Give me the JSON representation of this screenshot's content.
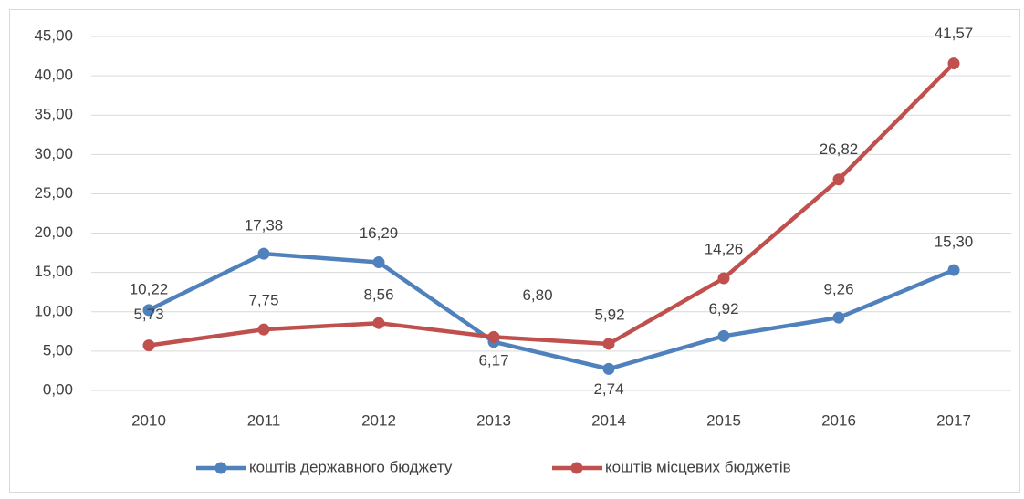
{
  "chart_data": {
    "type": "line",
    "categories": [
      "2010",
      "2011",
      "2012",
      "2013",
      "2014",
      "2015",
      "2016",
      "2017"
    ],
    "series": [
      {
        "name": "коштів державного бюджету",
        "color": "#4f81bd",
        "values": [
          10.22,
          17.38,
          16.29,
          6.17,
          2.74,
          6.92,
          9.26,
          15.3
        ],
        "value_labels": [
          "10,22",
          "17,38",
          "16,29",
          "6,17",
          "2,74",
          "6,92",
          "9,26",
          "15,30"
        ]
      },
      {
        "name": "коштів місцевих бюджетів",
        "color": "#c0504d",
        "values": [
          5.73,
          7.75,
          8.56,
          6.8,
          5.92,
          14.26,
          26.82,
          41.57
        ],
        "value_labels": [
          "5,73",
          "7,75",
          "8,56",
          "6,80",
          "5,92",
          "14,26",
          "26,82",
          "41,57"
        ]
      }
    ],
    "ylim": [
      0,
      45
    ],
    "yticks": [
      {
        "value": 0,
        "label": "0,00"
      },
      {
        "value": 5,
        "label": "5,00"
      },
      {
        "value": 10,
        "label": "10,00"
      },
      {
        "value": 15,
        "label": "15,00"
      },
      {
        "value": 20,
        "label": "20,00"
      },
      {
        "value": 25,
        "label": "25,00"
      },
      {
        "value": 30,
        "label": "30,00"
      },
      {
        "value": 35,
        "label": "35,00"
      },
      {
        "value": 40,
        "label": "40,00"
      },
      {
        "value": 45,
        "label": "45,00"
      }
    ],
    "grid": true,
    "legend": "bottom"
  }
}
